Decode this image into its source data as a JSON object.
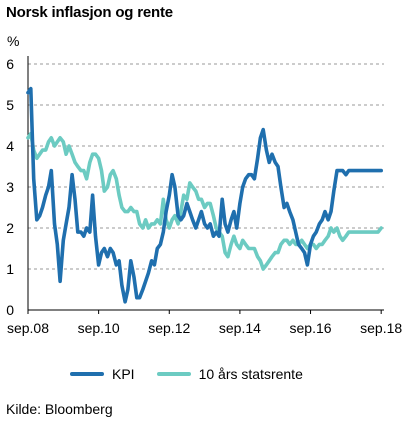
{
  "chart_data": {
    "type": "line",
    "title": "Norsk inflasjon og rente",
    "ylabel": "%",
    "ylim": [
      0,
      6
    ],
    "yticks": [
      "0",
      "1",
      "2",
      "3",
      "4",
      "5",
      "6"
    ],
    "x_ticks": [
      "sep.08",
      "sep.10",
      "sep.12",
      "sep.14",
      "sep.16",
      "sep.18"
    ],
    "x_range": [
      2008.67,
      2018.75
    ],
    "grid": "horizontal dashed",
    "legend_position": "bottom",
    "colors": {
      "KPI": "#1f6fae",
      "rente": "#6ccbc2"
    },
    "series": [
      {
        "name": "KPI",
        "x": [
          2008.67,
          2008.75,
          2008.83,
          2008.92,
          2009.0,
          2009.08,
          2009.17,
          2009.25,
          2009.33,
          2009.42,
          2009.5,
          2009.58,
          2009.67,
          2009.75,
          2009.83,
          2009.92,
          2010.0,
          2010.08,
          2010.17,
          2010.25,
          2010.33,
          2010.42,
          2010.5,
          2010.58,
          2010.67,
          2010.75,
          2010.83,
          2010.92,
          2011.0,
          2011.08,
          2011.17,
          2011.25,
          2011.33,
          2011.42,
          2011.5,
          2011.58,
          2011.67,
          2011.75,
          2011.83,
          2011.92,
          2012.0,
          2012.08,
          2012.17,
          2012.25,
          2012.33,
          2012.42,
          2012.5,
          2012.58,
          2012.67,
          2012.75,
          2012.83,
          2012.92,
          2013.0,
          2013.08,
          2013.17,
          2013.25,
          2013.33,
          2013.42,
          2013.5,
          2013.58,
          2013.67,
          2013.75,
          2013.83,
          2013.92,
          2014.0,
          2014.08,
          2014.17,
          2014.25,
          2014.33,
          2014.42,
          2014.5,
          2014.58,
          2014.67,
          2014.75,
          2014.83,
          2014.92,
          2015.0,
          2015.08,
          2015.17,
          2015.25,
          2015.33,
          2015.42,
          2015.5,
          2015.58,
          2015.67,
          2015.75,
          2015.83,
          2015.92,
          2016.0,
          2016.08,
          2016.17,
          2016.25,
          2016.33,
          2016.42,
          2016.5,
          2016.58,
          2016.67,
          2016.75,
          2016.83,
          2016.92,
          2017.0,
          2017.08,
          2017.17,
          2017.25,
          2017.33,
          2017.42,
          2017.5,
          2017.58,
          2017.67,
          2017.75,
          2017.83,
          2017.92,
          2018.0,
          2018.08,
          2018.17,
          2018.25,
          2018.33,
          2018.42,
          2018.5,
          2018.58,
          2018.67
        ],
        "values": [
          5.3,
          5.4,
          3.2,
          2.2,
          2.3,
          2.5,
          2.8,
          3.0,
          3.4,
          2.1,
          1.6,
          0.7,
          1.7,
          2.1,
          2.5,
          3.3,
          2.7,
          1.9,
          1.9,
          1.8,
          2.0,
          1.9,
          2.8,
          1.8,
          1.1,
          1.4,
          1.5,
          1.3,
          1.5,
          1.4,
          1.1,
          1.2,
          0.6,
          0.2,
          0.5,
          1.2,
          0.8,
          0.3,
          0.3,
          0.5,
          0.7,
          0.9,
          1.2,
          1.1,
          1.5,
          1.6,
          1.9,
          2.4,
          2.8,
          3.3,
          3.0,
          2.3,
          2.2,
          2.3,
          2.6,
          2.4,
          2.2,
          2.0,
          2.2,
          2.4,
          2.1,
          2.0,
          2.1,
          1.8,
          1.9,
          1.8,
          2.7,
          2.1,
          1.9,
          2.2,
          2.4,
          2.0,
          2.6,
          3.0,
          3.2,
          3.3,
          3.3,
          3.2,
          3.7,
          4.2,
          4.4,
          3.9,
          3.6,
          3.8,
          3.6,
          3.5,
          3.0,
          2.5,
          2.6,
          2.4,
          2.2,
          1.9,
          1.6,
          1.5,
          1.4,
          1.1,
          1.6,
          1.8,
          1.9,
          2.1,
          2.2,
          2.4,
          2.2,
          2.4,
          2.9,
          3.4,
          3.4,
          3.4,
          3.3,
          3.4,
          3.4,
          3.4,
          3.4,
          3.4,
          3.4,
          3.4,
          3.4,
          3.4,
          3.4,
          3.4,
          3.4
        ]
      },
      {
        "name": "10 års statsrente",
        "x": [
          2008.67,
          2008.75,
          2008.83,
          2008.92,
          2009.0,
          2009.08,
          2009.17,
          2009.25,
          2009.33,
          2009.42,
          2009.5,
          2009.58,
          2009.67,
          2009.75,
          2009.83,
          2009.92,
          2010.0,
          2010.08,
          2010.17,
          2010.25,
          2010.33,
          2010.42,
          2010.5,
          2010.58,
          2010.67,
          2010.75,
          2010.83,
          2010.92,
          2011.0,
          2011.08,
          2011.17,
          2011.25,
          2011.33,
          2011.42,
          2011.5,
          2011.58,
          2011.67,
          2011.75,
          2011.83,
          2011.92,
          2012.0,
          2012.08,
          2012.17,
          2012.25,
          2012.33,
          2012.42,
          2012.5,
          2012.58,
          2012.67,
          2012.75,
          2012.83,
          2012.92,
          2013.0,
          2013.08,
          2013.17,
          2013.25,
          2013.33,
          2013.42,
          2013.5,
          2013.58,
          2013.67,
          2013.75,
          2013.83,
          2013.92,
          2014.0,
          2014.08,
          2014.17,
          2014.25,
          2014.33,
          2014.42,
          2014.5,
          2014.58,
          2014.67,
          2014.75,
          2014.83,
          2014.92,
          2015.0,
          2015.08,
          2015.17,
          2015.25,
          2015.33,
          2015.42,
          2015.5,
          2015.58,
          2015.67,
          2015.75,
          2015.83,
          2015.92,
          2016.0,
          2016.08,
          2016.17,
          2016.25,
          2016.33,
          2016.42,
          2016.5,
          2016.58,
          2016.67,
          2016.75,
          2016.83,
          2016.92,
          2017.0,
          2017.08,
          2017.17,
          2017.25,
          2017.33,
          2017.42,
          2017.5,
          2017.58,
          2017.67,
          2017.75,
          2017.83,
          2017.92,
          2018.0,
          2018.08,
          2018.17,
          2018.25,
          2018.33,
          2018.42,
          2018.5,
          2018.58,
          2018.67
        ],
        "values": [
          4.2,
          4.3,
          3.9,
          3.7,
          3.8,
          3.9,
          3.9,
          4.1,
          4.2,
          4.0,
          4.1,
          4.2,
          4.1,
          3.8,
          4.0,
          3.8,
          3.6,
          3.5,
          3.4,
          3.4,
          3.2,
          3.6,
          3.8,
          3.8,
          3.7,
          3.4,
          2.9,
          3.0,
          3.3,
          3.4,
          3.2,
          2.8,
          2.5,
          2.4,
          2.4,
          2.5,
          2.4,
          2.4,
          2.1,
          2.0,
          2.2,
          2.0,
          2.1,
          2.1,
          2.2,
          2.1,
          2.7,
          2.2,
          2.0,
          2.2,
          2.3,
          2.1,
          2.4,
          2.8,
          2.7,
          3.1,
          3.0,
          2.9,
          2.7,
          2.7,
          2.5,
          2.6,
          2.6,
          2.3,
          2.0,
          1.9,
          1.8,
          1.4,
          1.3,
          1.6,
          1.8,
          1.6,
          1.5,
          1.7,
          1.6,
          1.5,
          1.5,
          1.5,
          1.3,
          1.2,
          1.0,
          1.1,
          1.2,
          1.3,
          1.4,
          1.4,
          1.6,
          1.7,
          1.7,
          1.6,
          1.7,
          1.6,
          1.6,
          1.7,
          1.6,
          1.5,
          1.6,
          1.6,
          1.5,
          1.6,
          1.6,
          1.7,
          1.8,
          2.0,
          1.9,
          2.0,
          1.8,
          1.7,
          1.8,
          1.9,
          1.9,
          1.9,
          1.9,
          1.9,
          1.9,
          1.9,
          1.9,
          1.9,
          1.9,
          1.9,
          2.0
        ]
      }
    ]
  },
  "source": "Kilde: Bloomberg"
}
